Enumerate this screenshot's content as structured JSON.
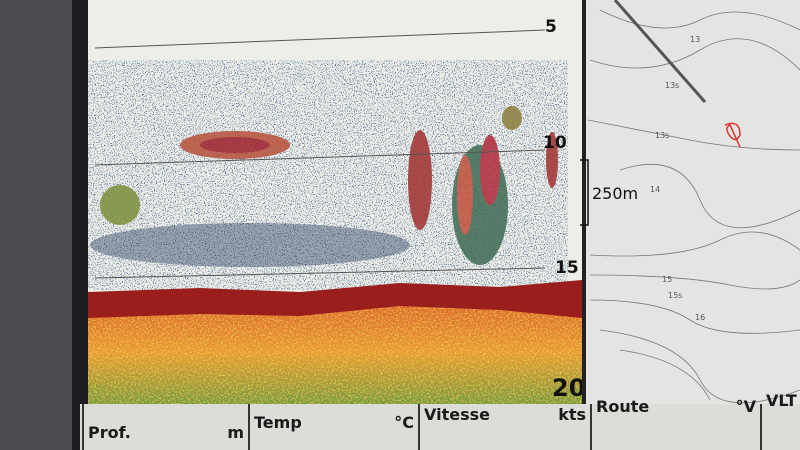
{
  "sonar": {
    "depth_labels": [
      "5",
      "10",
      "15",
      "20"
    ],
    "range_scale": "250m"
  },
  "map": {
    "contour_labels": [
      "13",
      "13s",
      "13s",
      "14",
      "15",
      "15s",
      "16"
    ]
  },
  "status_bar": {
    "fields": [
      {
        "label": "Prof.",
        "unit": "m"
      },
      {
        "label": "Temp",
        "unit": "°C"
      },
      {
        "label": "Vitesse",
        "unit": "kts"
      },
      {
        "label": "Route",
        "unit": "°V"
      },
      {
        "label": "VLT",
        "unit": null
      }
    ]
  }
}
